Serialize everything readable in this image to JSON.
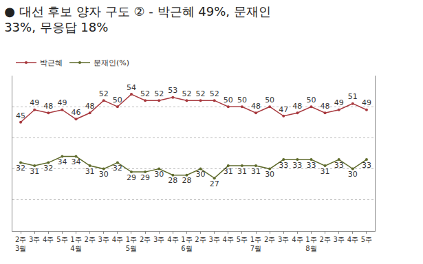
{
  "chart_data": {
    "type": "line",
    "title": "● 대선 후보 양자 구도 ② - 박근혜 49%, 문재인\n33%, 무응답 18%",
    "categories": [
      "2주\n3월",
      "3주",
      "4주",
      "5주",
      "1주\n4월",
      "2주",
      "3주",
      "4주",
      "1주\n5월",
      "2주",
      "3주",
      "4주",
      "1주\n6월",
      "2주",
      "3주",
      "4주",
      "5주",
      "1주\n7월",
      "2주",
      "3주",
      "4주",
      "1주\n8월",
      "2주",
      "3주",
      "4주",
      "5주"
    ],
    "series": [
      {
        "name": "박근혜",
        "color": "#a83a3f",
        "marker": "circle",
        "values": [
          45,
          49,
          48,
          49,
          46,
          48,
          52,
          50,
          54,
          52,
          52,
          53,
          52,
          52,
          52,
          50,
          50,
          48,
          50,
          47,
          48,
          50,
          48,
          49,
          51,
          49
        ]
      },
      {
        "name": "문재인(%)",
        "color": "#5f6b2c",
        "marker": "circle",
        "values": [
          32,
          31,
          32,
          34,
          34,
          31,
          30,
          32,
          29,
          29,
          30,
          28,
          28,
          30,
          27,
          31,
          31,
          31,
          30,
          33,
          33,
          33,
          31,
          33,
          30,
          33
        ]
      }
    ],
    "ylim": [
      10,
      60
    ],
    "yticks": [
      10,
      20,
      30,
      40,
      50,
      60
    ],
    "grid": true,
    "legend": "top-left",
    "data_labels": true,
    "tick_labels": "x"
  }
}
